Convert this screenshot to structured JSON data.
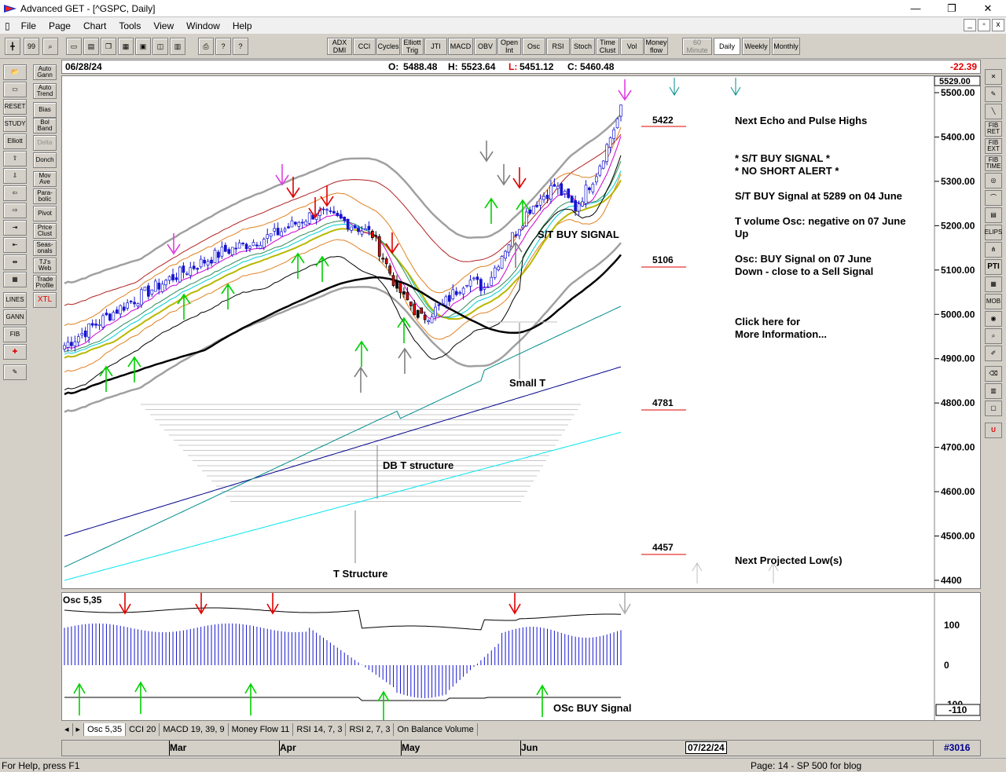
{
  "window": {
    "title": "Advanced GET - [^GSPC, Daily]",
    "minimize": "—",
    "restore": "❐",
    "close": "✕"
  },
  "menu": [
    "File",
    "Page",
    "Chart",
    "Tools",
    "View",
    "Window",
    "Help"
  ],
  "doc_buttons": [
    "_",
    "▫",
    "x"
  ],
  "toolbar": {
    "study_buttons": [
      "ADX DMI",
      "CCI",
      "Cycles",
      "Elliott Trig",
      "JTI",
      "MACD",
      "OBV",
      "Open Int",
      "Osc",
      "RSI",
      "Stoch",
      "Time Clust",
      "Vol",
      "Money flow"
    ],
    "timeframes": [
      "60 Minute",
      "Daily",
      "Weekly",
      "Monthly"
    ],
    "selected_timeframe": "Daily"
  },
  "left_toolbar": [
    "Auto Gann",
    "Auto Trend",
    "Bias",
    "Bol Band",
    "Delta",
    "Donch",
    "Mov Ave",
    "Para-bolic",
    "Pivot",
    "Price Clust",
    "Seas-onals",
    "TJ's Web",
    "Trade Profile",
    "XTL"
  ],
  "left_icon_labels": [
    "RESET",
    "STUDY",
    "Elliott",
    "LINES",
    "GANN",
    "FIB"
  ],
  "right_toolbar": [
    "FIB RET",
    "FIB EXT",
    "FIB TIME",
    "ELIPS",
    "PTI",
    "MOB"
  ],
  "info": {
    "date": "06/28/24",
    "open_label": "O:",
    "open": "5488.48",
    "high_label": "H:",
    "high": "5523.64",
    "low_label": "L:",
    "low": "5451.12",
    "close_label": "C:",
    "close": "5460.48",
    "change": "-22.39"
  },
  "annotations": {
    "levels": [
      "5422",
      "5106",
      "4781",
      "4457"
    ],
    "next_highs": "Next Echo and Pulse Highs",
    "st_buy": "* S/T BUY SIGNAL *",
    "no_short": "* NO SHORT ALERT *",
    "st_buy_at": "S/T BUY Signal at 5289 on 04 June",
    "tvol_1": "T volume Osc: negative on 07 June",
    "tvol_2": "Up",
    "osc_1": "Osc: BUY Signal on 07 June",
    "osc_2": "Down - close to a Sell Signal",
    "click_1": "Click here for",
    "click_2": "More Information...",
    "next_low": "Next Projected Low(s)",
    "st_buy_signal": "S/T BUY SIGNAL",
    "small_t": "Small T",
    "db_t": "DB T structure",
    "t_structure": "T Structure",
    "osc_buy_signal": "OSc BUY Signal"
  },
  "price_axis": {
    "top_label": "5529.00",
    "ticks": [
      "5500.00",
      "5400.00",
      "5300.00",
      "5200.00",
      "5100.00",
      "5000.00",
      "4900.00",
      "4800.00",
      "4700.00",
      "4600.00",
      "4500.00",
      "4400"
    ]
  },
  "osc_panel": {
    "label": "Osc 5,35",
    "ticks": [
      "100",
      "0",
      "-100"
    ],
    "current": "-110"
  },
  "tabs": [
    "Osc 5,35",
    "CCI 20",
    "MACD 19, 39, 9",
    "Money Flow 11",
    "RSI 14, 7, 3",
    "RSI 2, 7, 3",
    "On Balance Volume"
  ],
  "date_axis": {
    "months": [
      "Mar",
      "Apr",
      "May",
      "Jun"
    ],
    "cursor_date": "07/22/24",
    "bar_count": "#3016"
  },
  "status": {
    "help": "For Help, press F1",
    "page": "Page: 14 - SP 500 for blog"
  },
  "colors": {
    "bull_bar": "#0000ff",
    "bear_bar": "#ff0000",
    "buy_arrow": "#00e000",
    "sell_arrow": "#e00000",
    "ma_black": "#000000",
    "ma_navy": "#00008b",
    "ma_teal": "#008b8b",
    "ma_cyan": "#00e5ee"
  }
}
